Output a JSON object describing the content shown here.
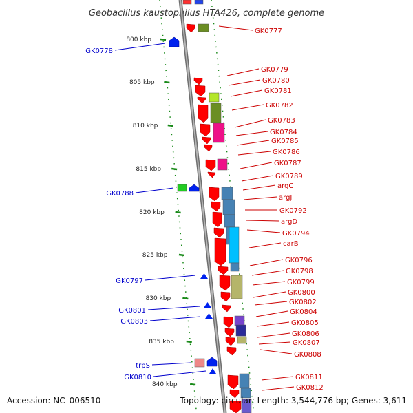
{
  "title": "Geobacillus kaustophilus HTA426, complete genome",
  "footer": {
    "accession": "Accession: NC_006510",
    "topology": "Topology: circular; Length: 3,544,776 bp; Genes: 3,611"
  },
  "scale_labels": [
    "800 kbp",
    "805 kbp",
    "810 kbp",
    "815 kbp",
    "820 kbp",
    "825 kbp",
    "830 kbp",
    "835 kbp",
    "840 kbp"
  ],
  "left_gene_labels": [
    "GK0778",
    "GK0788",
    "GK0797",
    "GK0801",
    "GK0803",
    "trpS",
    "GK0810"
  ],
  "right_gene_labels": [
    "GK0777",
    "GK0779",
    "GK0780",
    "GK0781",
    "GK0782",
    "GK0783",
    "GK0784",
    "GK0785",
    "GK0786",
    "GK0787",
    "GK0789",
    "argC",
    "argJ",
    "GK0792",
    "argD",
    "GK0794",
    "carB",
    "GK0796",
    "GK0798",
    "GK0799",
    "GK0800",
    "GK0802",
    "GK0804",
    "GK0805",
    "GK0806",
    "GK0807",
    "GK0808",
    "GK0811",
    "GK0812"
  ],
  "colors": {
    "backbone": "#8a8a8a",
    "scale_ticks": "#1a8a1a",
    "forward_gene": "#ff0000",
    "reverse_gene": "#0000ff",
    "left_label": "#0000cc",
    "right_label": "#cc0000",
    "text": "#333333"
  }
}
